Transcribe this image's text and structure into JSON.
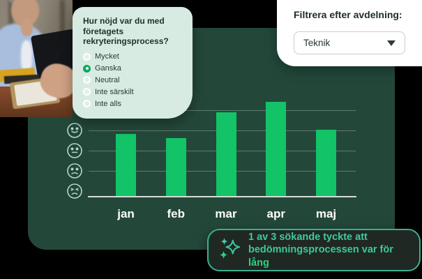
{
  "page": {
    "background": "#000000"
  },
  "photo_card": {
    "description": "interview scene photo"
  },
  "survey_card": {
    "title": "Hur nöjd var du med företagets rekryteringsprocess?",
    "options": [
      {
        "label": "Mycket",
        "selected": false
      },
      {
        "label": "Ganska",
        "selected": true
      },
      {
        "label": "Neutral",
        "selected": false
      },
      {
        "label": "Inte särskilt",
        "selected": false
      },
      {
        "label": "Inte alls",
        "selected": false
      }
    ],
    "colors": {
      "background": "#d8ebe3",
      "text": "#22332b",
      "radio_selected": "#0aa85e"
    }
  },
  "filter_card": {
    "label": "Filtrera efter avdelning:",
    "dropdown": {
      "value": "Teknik",
      "icon": "chevron-down-icon"
    },
    "colors": {
      "background": "#ffffff",
      "text": "#1d2b25"
    }
  },
  "chart_data": {
    "type": "bar",
    "title": "",
    "xlabel": "",
    "ylabel": "",
    "categories": [
      "jan",
      "feb",
      "mar",
      "apr",
      "maj"
    ],
    "values": [
      2.9,
      2.7,
      3.9,
      4.4,
      3.1
    ],
    "value_scale": "emoji satisfaction levels above baseline (0 = x-axis baseline, 4 = top happy-face gridline), estimated from bar heights",
    "ylim": [
      0,
      4.5
    ],
    "grid": true,
    "legend": false,
    "y_axis_icons": [
      "happy-face-icon",
      "neutral-face-icon",
      "sad-face-icon",
      "upset-face-icon"
    ],
    "bar_color": "#12c368",
    "panel_color": "#23483a"
  },
  "insight_badge": {
    "icon": "sparkles-icon",
    "text": "1 av 3 sökande tyckte att bedömningsprocessen var för lång",
    "colors": {
      "background": "#202823",
      "border": "#38b28e",
      "text_gradient_top": "#47c8a7",
      "text_gradient_bottom": "#2bd47f"
    }
  }
}
